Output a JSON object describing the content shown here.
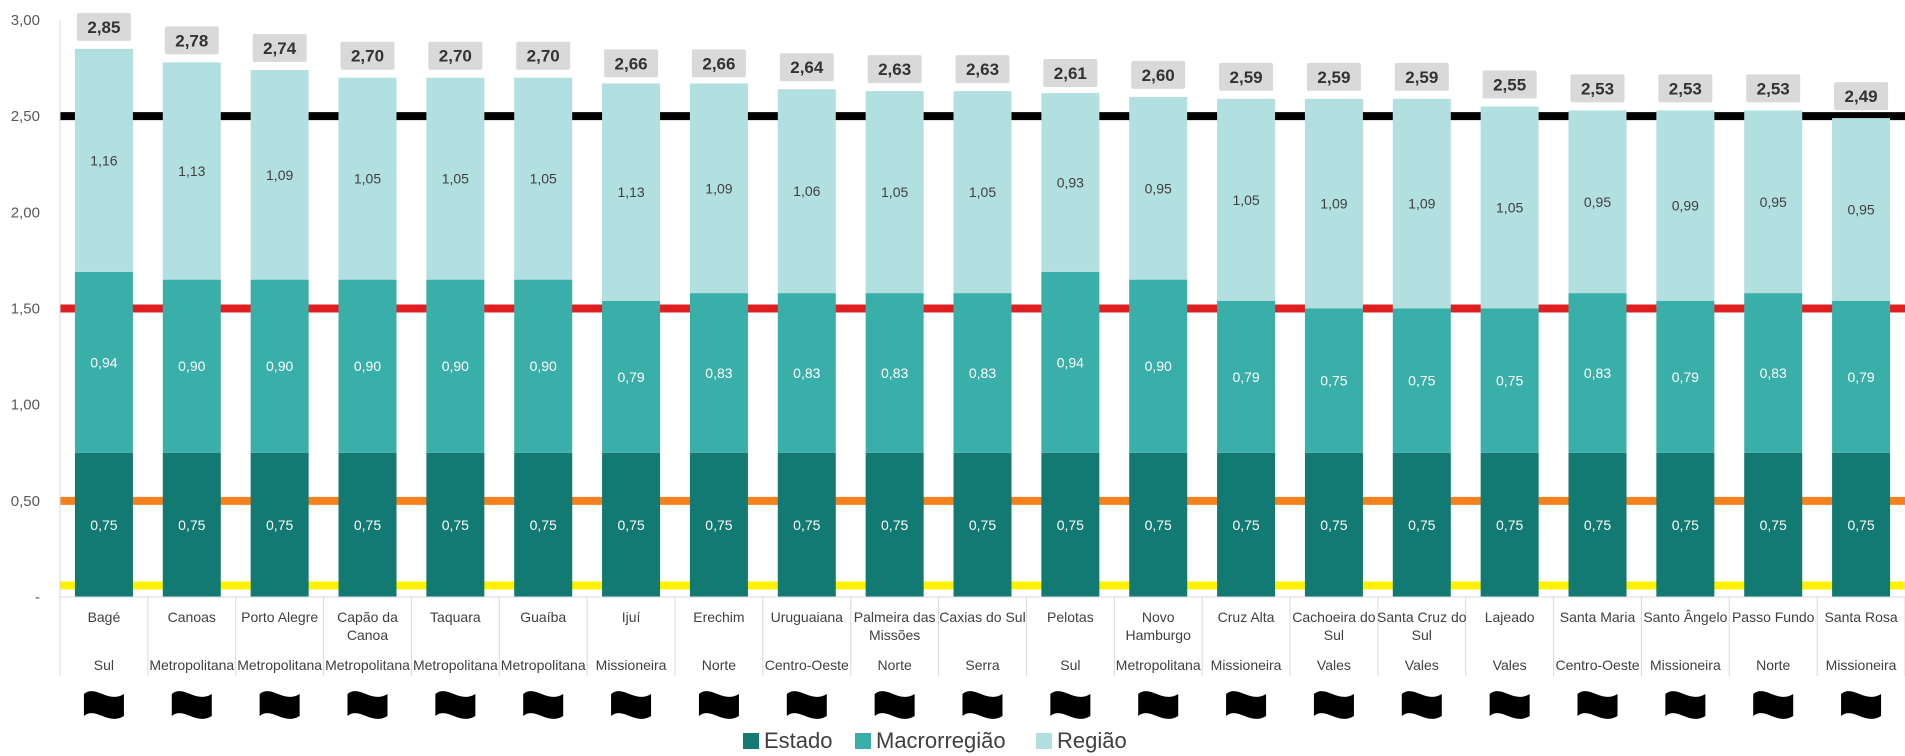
{
  "chart_data": {
    "type": "bar",
    "stacked": true,
    "title": "",
    "xlabel": "",
    "ylabel": "",
    "ylim": [
      0,
      3
    ],
    "yticks": [
      "-",
      "0,50",
      "1,00",
      "1,50",
      "2,00",
      "2,50",
      "3,00"
    ],
    "ytick_values": [
      0,
      0.5,
      1,
      1.5,
      2,
      2.5,
      3
    ],
    "grid": false,
    "legend_position": "bottom",
    "categories": [
      "Bagé",
      "Canoas",
      "Porto Alegre",
      "Capão da Canoa",
      "Taquara",
      "Guaíba",
      "Ijuí",
      "Erechim",
      "Uruguaiana",
      "Palmeira das Missões",
      "Caxias do Sul",
      "Pelotas",
      "Novo Hamburgo",
      "Cruz Alta",
      "Cachoeira do Sul",
      "Santa Cruz do Sul",
      "Lajeado",
      "Santa Maria",
      "Santo Ângelo",
      "Passo Fundo",
      "Santa Rosa"
    ],
    "category_lines": [
      [
        "Bagé"
      ],
      [
        "Canoas"
      ],
      [
        "Porto Alegre"
      ],
      [
        "Capão da",
        "Canoa"
      ],
      [
        "Taquara"
      ],
      [
        "Guaíba"
      ],
      [
        "Ijuí"
      ],
      [
        "Erechim"
      ],
      [
        "Uruguaiana"
      ],
      [
        "Palmeira das",
        "Missões"
      ],
      [
        "Caxias do Sul"
      ],
      [
        "Pelotas"
      ],
      [
        "Novo",
        "Hamburgo"
      ],
      [
        "Cruz Alta"
      ],
      [
        "Cachoeira do",
        "Sul"
      ],
      [
        "Santa Cruz do",
        "Sul"
      ],
      [
        "Lajeado"
      ],
      [
        "Santa Maria"
      ],
      [
        "Santo Ângelo"
      ],
      [
        "Passo Fundo"
      ],
      [
        "Santa Rosa"
      ]
    ],
    "macro_regions": [
      "Sul",
      "Metropolitana",
      "Metropolitana",
      "Metropolitana",
      "Metropolitana",
      "Metropolitana",
      "Missioneira",
      "Norte",
      "Centro-Oeste",
      "Norte",
      "Serra",
      "Sul",
      "Metropolitana",
      "Missioneira",
      "Vales",
      "Vales",
      "Vales",
      "Centro-Oeste",
      "Missioneira",
      "Norte",
      "Missioneira"
    ],
    "series": [
      {
        "name": "Estado",
        "color": "#127a72",
        "values": [
          0.75,
          0.75,
          0.75,
          0.75,
          0.75,
          0.75,
          0.75,
          0.75,
          0.75,
          0.75,
          0.75,
          0.75,
          0.75,
          0.75,
          0.75,
          0.75,
          0.75,
          0.75,
          0.75,
          0.75,
          0.75
        ],
        "labels": [
          "0,75",
          "0,75",
          "0,75",
          "0,75",
          "0,75",
          "0,75",
          "0,75",
          "0,75",
          "0,75",
          "0,75",
          "0,75",
          "0,75",
          "0,75",
          "0,75",
          "0,75",
          "0,75",
          "0,75",
          "0,75",
          "0,75",
          "0,75",
          "0,75"
        ]
      },
      {
        "name": "Macrorregião",
        "color": "#3aafa9",
        "values": [
          0.94,
          0.9,
          0.9,
          0.9,
          0.9,
          0.9,
          0.79,
          0.83,
          0.83,
          0.83,
          0.83,
          0.94,
          0.9,
          0.79,
          0.75,
          0.75,
          0.75,
          0.83,
          0.79,
          0.83,
          0.79
        ],
        "labels": [
          "0,94",
          "0,90",
          "0,90",
          "0,90",
          "0,90",
          "0,90",
          "0,79",
          "0,83",
          "0,83",
          "0,83",
          "0,83",
          "0,94",
          "0,90",
          "0,79",
          "0,75",
          "0,75",
          "0,75",
          "0,83",
          "0,79",
          "0,83",
          "0,79"
        ]
      },
      {
        "name": "Região",
        "color": "#b2dfdf",
        "values": [
          1.16,
          1.13,
          1.09,
          1.05,
          1.05,
          1.05,
          1.13,
          1.09,
          1.06,
          1.05,
          1.05,
          0.93,
          0.95,
          1.05,
          1.09,
          1.09,
          1.05,
          0.95,
          0.99,
          0.95,
          0.95
        ],
        "labels": [
          "1,16",
          "1,13",
          "1,09",
          "1,05",
          "1,05",
          "1,05",
          "1,13",
          "1,09",
          "1,06",
          "1,05",
          "1,05",
          "0,93",
          "0,95",
          "1,05",
          "1,09",
          "1,09",
          "1,05",
          "0,95",
          "0,99",
          "0,95",
          "0,95"
        ]
      }
    ],
    "totals": [
      2.85,
      2.78,
      2.74,
      2.7,
      2.7,
      2.7,
      2.66,
      2.66,
      2.64,
      2.63,
      2.63,
      2.61,
      2.6,
      2.59,
      2.59,
      2.59,
      2.55,
      2.53,
      2.53,
      2.53,
      2.49
    ],
    "total_labels": [
      "2,85",
      "2,78",
      "2,74",
      "2,70",
      "2,70",
      "2,70",
      "2,66",
      "2,66",
      "2,64",
      "2,63",
      "2,63",
      "2,61",
      "2,60",
      "2,59",
      "2,59",
      "2,59",
      "2,55",
      "2,53",
      "2,53",
      "2,53",
      "2,49"
    ],
    "reference_lines": [
      {
        "value": 2.5,
        "color": "#000000"
      },
      {
        "value": 1.5,
        "color": "#e02020"
      },
      {
        "value": 0.5,
        "color": "#f5821f"
      },
      {
        "value": 0.06,
        "color": "#fff200"
      }
    ],
    "flag_icon": "black-flag-icon"
  }
}
